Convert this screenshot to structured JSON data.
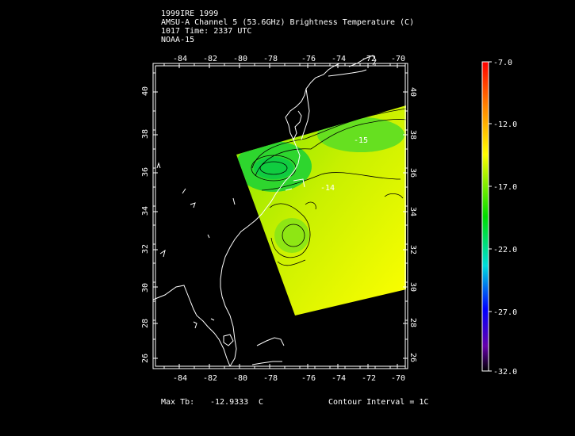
{
  "header": {
    "line1": "1999IRE 1999",
    "line2": "AMSU-A Channel 5 (53.6GHz) Brightness Temperature (C)",
    "line3": "1017 Time: 2337 UTC",
    "line4": "NOAA-15"
  },
  "footer": {
    "max_label": "Max Tb:",
    "max_value": "-12.9333",
    "max_unit": "C",
    "contour_label": "Contour Interval = 1C"
  },
  "map": {
    "lon_labels": [
      "-84",
      "-82",
      "-80",
      "-78",
      "-76",
      "-74",
      "-72",
      "-70"
    ],
    "lat_labels": [
      "40",
      "38",
      "36",
      "34",
      "32",
      "30",
      "28",
      "26"
    ],
    "contour_labels": [
      "-15",
      "-14"
    ]
  },
  "colorbar": {
    "labels": [
      "-7.0",
      "-12.0",
      "-17.0",
      "-22.0",
      "-27.0",
      "-32.0"
    ],
    "colors": [
      "#ff0000",
      "#ff8000",
      "#ffff00",
      "#00e000",
      "#00e0e0",
      "#0000ff",
      "#6600aa",
      "#000000"
    ]
  }
}
